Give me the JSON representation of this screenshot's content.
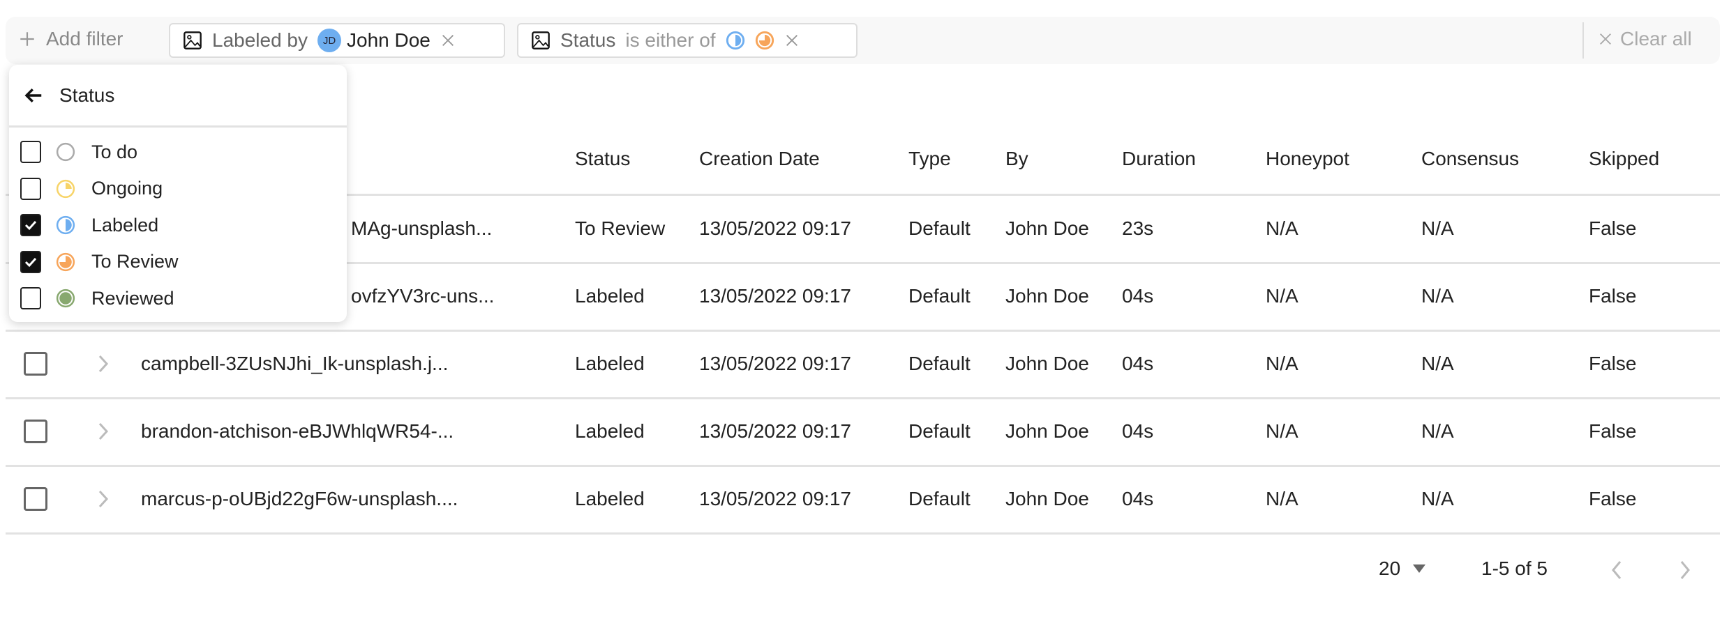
{
  "filter_bar": {
    "add_filter_label": "Add filter",
    "chips": [
      {
        "field": "Labeled by",
        "operator": "",
        "user_initials": "JD",
        "user_name": "John Doe"
      },
      {
        "field": "Status",
        "operator": "is either of",
        "values": [
          "Labeled",
          "To Review"
        ]
      }
    ],
    "clear_all_label": "Clear all"
  },
  "dropdown": {
    "title": "Status",
    "items": [
      {
        "label": "To do",
        "checked": false,
        "color": "#aaaaaa"
      },
      {
        "label": "Ongoing",
        "checked": false,
        "color": "#f7d469"
      },
      {
        "label": "Labeled",
        "checked": true,
        "color": "#6eaef0"
      },
      {
        "label": "To Review",
        "checked": true,
        "color": "#f7a55a"
      },
      {
        "label": "Reviewed",
        "checked": false,
        "color": "#88a86f"
      }
    ]
  },
  "table": {
    "columns": [
      "Status",
      "Creation Date",
      "Type",
      "By",
      "Duration",
      "Honeypot",
      "Consensus",
      "Skipped"
    ],
    "rows": [
      {
        "name": "MAg-unsplash...",
        "status": "To Review",
        "date": "13/05/2022 09:17",
        "type": "Default",
        "by": "John Doe",
        "duration": "23s",
        "honeypot": "N/A",
        "consensus": "N/A",
        "skipped": "False"
      },
      {
        "name": "ovfzYV3rc-uns...",
        "status": "Labeled",
        "date": "13/05/2022 09:17",
        "type": "Default",
        "by": "John Doe",
        "duration": "04s",
        "honeypot": "N/A",
        "consensus": "N/A",
        "skipped": "False"
      },
      {
        "name": "campbell-3ZUsNJhi_Ik-unsplash.j...",
        "status": "Labeled",
        "date": "13/05/2022 09:17",
        "type": "Default",
        "by": "John Doe",
        "duration": "04s",
        "honeypot": "N/A",
        "consensus": "N/A",
        "skipped": "False"
      },
      {
        "name": "brandon-atchison-eBJWhlqWR54-...",
        "status": "Labeled",
        "date": "13/05/2022 09:17",
        "type": "Default",
        "by": "John Doe",
        "duration": "04s",
        "honeypot": "N/A",
        "consensus": "N/A",
        "skipped": "False"
      },
      {
        "name": "marcus-p-oUBjd22gF6w-unsplash....",
        "status": "Labeled",
        "date": "13/05/2022 09:17",
        "type": "Default",
        "by": "John Doe",
        "duration": "04s",
        "honeypot": "N/A",
        "consensus": "N/A",
        "skipped": "False"
      }
    ]
  },
  "pagination": {
    "page_size": "20",
    "range": "1-5 of 5"
  }
}
